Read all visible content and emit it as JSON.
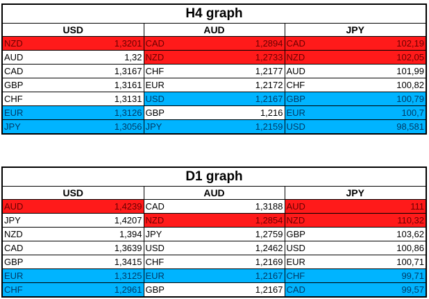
{
  "colors": {
    "highlight_red": "#ff1a1a",
    "highlight_blue": "#00b4ff",
    "border": "#000000"
  },
  "panels": [
    {
      "title": "H4 graph",
      "columns": [
        "USD",
        "AUD",
        "JPY"
      ],
      "rows": [
        [
          {
            "ccy": "NZD",
            "val": "1,3201",
            "hl": "red"
          },
          {
            "ccy": "CAD",
            "val": "1,2894",
            "hl": "red"
          },
          {
            "ccy": "CAD",
            "val": "102,19",
            "hl": "red"
          }
        ],
        [
          {
            "ccy": "AUD",
            "val": "1,32",
            "hl": "plain"
          },
          {
            "ccy": "NZD",
            "val": "1,2733",
            "hl": "red"
          },
          {
            "ccy": "NZD",
            "val": "102,05",
            "hl": "red"
          }
        ],
        [
          {
            "ccy": "CAD",
            "val": "1,3167",
            "hl": "plain"
          },
          {
            "ccy": "CHF",
            "val": "1,2177",
            "hl": "plain"
          },
          {
            "ccy": "AUD",
            "val": "101,99",
            "hl": "plain"
          }
        ],
        [
          {
            "ccy": "GBP",
            "val": "1,3161",
            "hl": "plain"
          },
          {
            "ccy": "EUR",
            "val": "1,2172",
            "hl": "plain"
          },
          {
            "ccy": "CHF",
            "val": "100,82",
            "hl": "plain"
          }
        ],
        [
          {
            "ccy": "CHF",
            "val": "1,3131",
            "hl": "plain"
          },
          {
            "ccy": "USD",
            "val": "1,2167",
            "hl": "blue"
          },
          {
            "ccy": "GBP",
            "val": "100,79",
            "hl": "blue"
          }
        ],
        [
          {
            "ccy": "EUR",
            "val": "1,3126",
            "hl": "blue"
          },
          {
            "ccy": "GBP",
            "val": "1,216",
            "hl": "plain"
          },
          {
            "ccy": "EUR",
            "val": "100,7",
            "hl": "blue"
          }
        ],
        [
          {
            "ccy": "JPY",
            "val": "1,3056",
            "hl": "blue"
          },
          {
            "ccy": "JPY",
            "val": "1,2159",
            "hl": "blue"
          },
          {
            "ccy": "USD",
            "val": "98,581",
            "hl": "blue"
          }
        ]
      ]
    },
    {
      "title": "D1 graph",
      "columns": [
        "USD",
        "AUD",
        "JPY"
      ],
      "rows": [
        [
          {
            "ccy": "AUD",
            "val": "1,4239",
            "hl": "red"
          },
          {
            "ccy": "CAD",
            "val": "1,3188",
            "hl": "plain"
          },
          {
            "ccy": "AUD",
            "val": "111",
            "hl": "red"
          }
        ],
        [
          {
            "ccy": "JPY",
            "val": "1,4207",
            "hl": "plain"
          },
          {
            "ccy": "NZD",
            "val": "1,2854",
            "hl": "red"
          },
          {
            "ccy": "NZD",
            "val": "110,32",
            "hl": "red"
          }
        ],
        [
          {
            "ccy": "NZD",
            "val": "1,394",
            "hl": "plain"
          },
          {
            "ccy": "JPY",
            "val": "1,2759",
            "hl": "plain"
          },
          {
            "ccy": "GBP",
            "val": "103,62",
            "hl": "plain"
          }
        ],
        [
          {
            "ccy": "CAD",
            "val": "1,3639",
            "hl": "plain"
          },
          {
            "ccy": "USD",
            "val": "1,2462",
            "hl": "plain"
          },
          {
            "ccy": "USD",
            "val": "100,86",
            "hl": "plain"
          }
        ],
        [
          {
            "ccy": "GBP",
            "val": "1,3415",
            "hl": "plain"
          },
          {
            "ccy": "CHF",
            "val": "1,2169",
            "hl": "plain"
          },
          {
            "ccy": "EUR",
            "val": "100,71",
            "hl": "plain"
          }
        ],
        [
          {
            "ccy": "EUR",
            "val": "1,3125",
            "hl": "blue"
          },
          {
            "ccy": "EUR",
            "val": "1,2167",
            "hl": "blue"
          },
          {
            "ccy": "CHF",
            "val": "99,71",
            "hl": "blue"
          }
        ],
        [
          {
            "ccy": "CHF",
            "val": "1,2961",
            "hl": "blue"
          },
          {
            "ccy": "GBP",
            "val": "1,2167",
            "hl": "plain"
          },
          {
            "ccy": "CAD",
            "val": "99,57",
            "hl": "blue"
          }
        ]
      ]
    }
  ]
}
